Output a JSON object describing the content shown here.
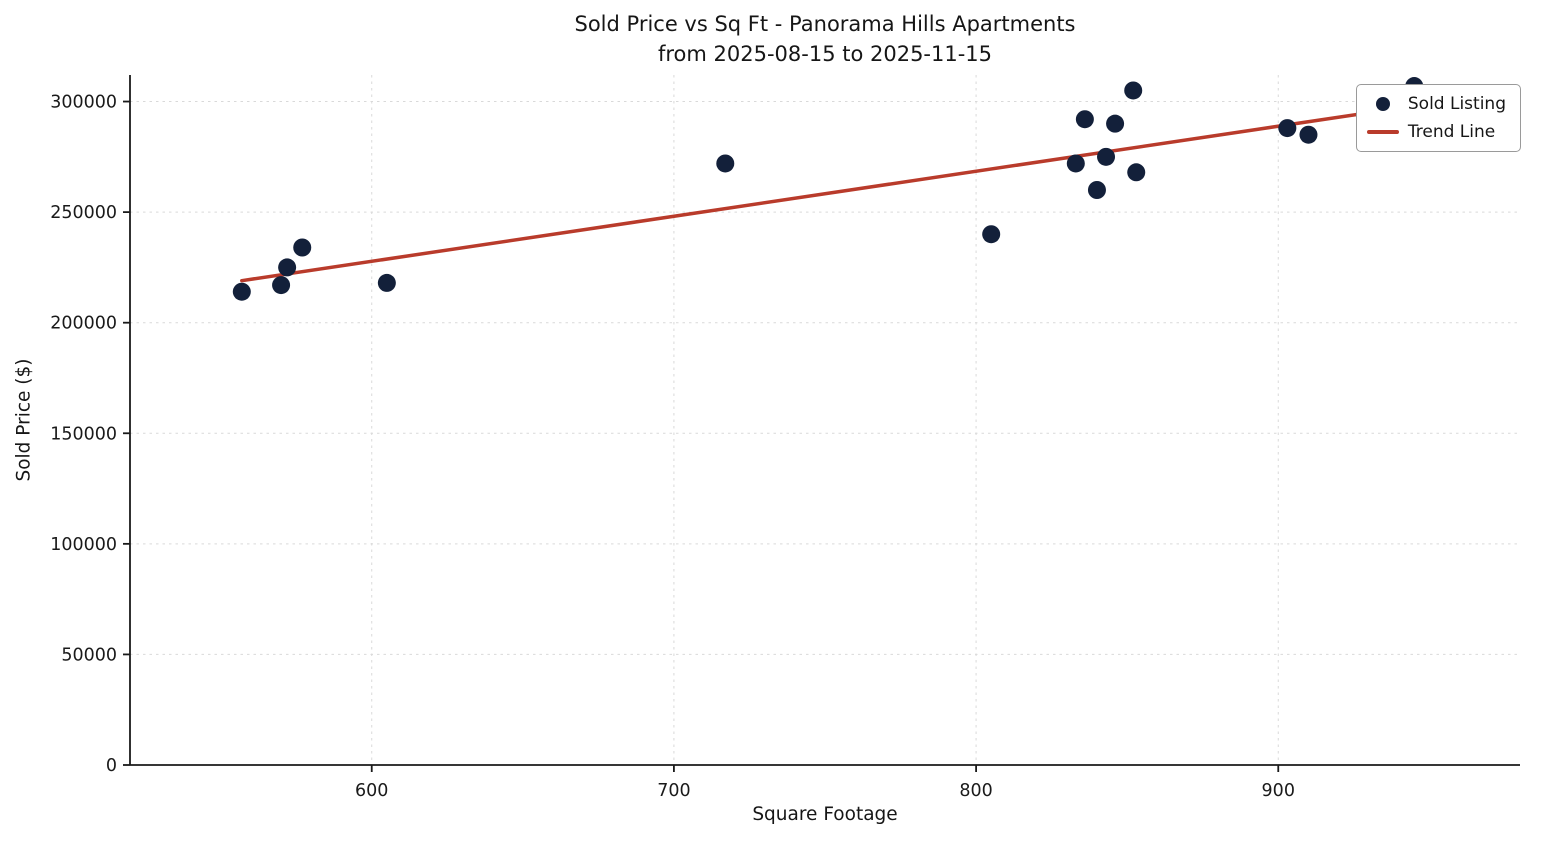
{
  "chart_data": {
    "type": "scatter",
    "title": "Sold Price vs Sq Ft - Panorama Hills Apartments\nfrom 2025-08-15 to 2025-11-15",
    "title_lines": [
      "Sold Price vs Sq Ft - Panorama Hills Apartments",
      "from 2025-08-15 to 2025-11-15"
    ],
    "xlabel": "Square Footage",
    "ylabel": "Sold Price ($)",
    "xlim": [
      520,
      980
    ],
    "ylim": [
      0,
      312000
    ],
    "xticks": [
      600,
      700,
      800,
      900
    ],
    "yticks": [
      0,
      50000,
      100000,
      150000,
      200000,
      250000,
      300000
    ],
    "grid": true,
    "legend": {
      "position": "upper right",
      "entries": [
        {
          "label": "Sold Listing",
          "marker": "circle",
          "color": "#13203a"
        },
        {
          "label": "Trend Line",
          "marker": "line",
          "color": "#b93b2b"
        }
      ]
    },
    "series": [
      {
        "name": "Sold Listing",
        "type": "scatter",
        "color": "#13203a",
        "marker_size": 9,
        "points": [
          [
            557,
            214000
          ],
          [
            570,
            217000
          ],
          [
            572,
            225000
          ],
          [
            577,
            234000
          ],
          [
            605,
            218000
          ],
          [
            717,
            272000
          ],
          [
            805,
            240000
          ],
          [
            833,
            272000
          ],
          [
            836,
            292000
          ],
          [
            840,
            260000
          ],
          [
            843,
            275000
          ],
          [
            846,
            290000
          ],
          [
            852,
            305000
          ],
          [
            853,
            268000
          ],
          [
            903,
            288000
          ],
          [
            910,
            285000
          ],
          [
            945,
            307000
          ]
        ]
      },
      {
        "name": "Trend Line",
        "type": "line",
        "color": "#b93b2b",
        "line_width": 3.5,
        "points": [
          [
            557,
            219000
          ],
          [
            945,
            298000
          ]
        ]
      }
    ],
    "style": {
      "grid_color": "#d9d9d9",
      "spine_color": "#1a1a1a",
      "tick_label_color": "#1a1a1a",
      "background": "#ffffff"
    }
  }
}
